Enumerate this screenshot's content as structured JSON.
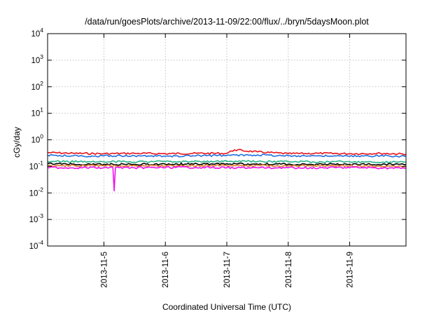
{
  "chart_data": {
    "type": "line",
    "title": "/data/run/goesPlots/archive/2013-11-09/22:00/flux/../bryn/5daysMoon.plot",
    "xlabel": "Coordinated Universal Time (UTC)",
    "ylabel": "cGy/day",
    "yscale": "log",
    "ylim": [
      0.0001,
      10000
    ],
    "y_ticks": [
      {
        "value": 0.0001,
        "base": "10",
        "exp": "-4"
      },
      {
        "value": 0.001,
        "base": "10",
        "exp": "-3"
      },
      {
        "value": 0.01,
        "base": "10",
        "exp": "-2"
      },
      {
        "value": 0.1,
        "base": "10",
        "exp": "-1"
      },
      {
        "value": 1,
        "base": "10",
        "exp": "0"
      },
      {
        "value": 10,
        "base": "10",
        "exp": "1"
      },
      {
        "value": 100,
        "base": "10",
        "exp": "2"
      },
      {
        "value": 1000,
        "base": "10",
        "exp": "3"
      },
      {
        "value": 10000,
        "base": "10",
        "exp": "4"
      }
    ],
    "xlim": [
      "2013-11-04T02:00",
      "2013-11-09T22:00"
    ],
    "x_ticks": [
      "2013-11-5",
      "2013-11-6",
      "2013-11-7",
      "2013-11-8",
      "2013-11-9"
    ],
    "grid": true,
    "legend": "none",
    "series": [
      {
        "color": "#e8141b",
        "x": [
          "2013-11-04T02:00",
          "2013-11-04T12:00",
          "2013-11-05T00:00",
          "2013-11-05T12:00",
          "2013-11-06T00:00",
          "2013-11-06T12:00",
          "2013-11-07T00:00",
          "2013-11-07T03:00",
          "2013-11-07T12:00",
          "2013-11-08T00:00",
          "2013-11-08T12:00",
          "2013-11-09T00:00",
          "2013-11-09T12:00",
          "2013-11-09T22:00"
        ],
        "y": [
          0.33,
          0.31,
          0.3,
          0.31,
          0.3,
          0.31,
          0.31,
          0.42,
          0.35,
          0.3,
          0.31,
          0.3,
          0.31,
          0.29
        ]
      },
      {
        "color": "#1f6fe0",
        "x": [
          "2013-11-04T02:00",
          "2013-11-04T12:00",
          "2013-11-04T20:00",
          "2013-11-05T00:00",
          "2013-11-05T12:00",
          "2013-11-06T00:00",
          "2013-11-06T12:00",
          "2013-11-07T00:00",
          "2013-11-07T12:00",
          "2013-11-08T00:00",
          "2013-11-08T12:00",
          "2013-11-09T00:00",
          "2013-11-09T12:00",
          "2013-11-09T22:00"
        ],
        "y": [
          0.26,
          0.25,
          0.24,
          0.25,
          0.25,
          0.24,
          0.25,
          0.26,
          0.27,
          0.25,
          0.25,
          0.24,
          0.25,
          0.24
        ]
      },
      {
        "color": "#2ab58a",
        "x": [
          "2013-11-04T02:00",
          "2013-11-05T00:00",
          "2013-11-06T00:00",
          "2013-11-07T00:00",
          "2013-11-08T00:00",
          "2013-11-09T00:00",
          "2013-11-09T22:00"
        ],
        "y": [
          0.155,
          0.15,
          0.15,
          0.155,
          0.15,
          0.15,
          0.145
        ]
      },
      {
        "color": "#000000",
        "x": [
          "2013-11-04T02:00",
          "2013-11-05T00:00",
          "2013-11-06T00:00",
          "2013-11-07T00:00",
          "2013-11-08T00:00",
          "2013-11-09T00:00",
          "2013-11-09T22:00"
        ],
        "y": [
          0.125,
          0.12,
          0.12,
          0.125,
          0.12,
          0.12,
          0.118
        ]
      },
      {
        "color": "#e07a2a",
        "x": [
          "2013-11-04T02:00",
          "2013-11-05T00:00",
          "2013-11-06T00:00",
          "2013-11-07T00:00",
          "2013-11-08T00:00",
          "2013-11-09T00:00",
          "2013-11-09T22:00"
        ],
        "y": [
          0.108,
          0.105,
          0.105,
          0.108,
          0.105,
          0.104,
          0.102
        ]
      },
      {
        "color": "#ee10ee",
        "x": [
          "2013-11-04T02:00",
          "2013-11-04T12:00",
          "2013-11-05T00:00",
          "2013-11-05T03:30",
          "2013-11-05T04:00",
          "2013-11-05T04:30",
          "2013-11-05T12:00",
          "2013-11-06T00:00",
          "2013-11-06T12:00",
          "2013-11-07T00:00",
          "2013-11-07T12:00",
          "2013-11-08T00:00",
          "2013-11-08T12:00",
          "2013-11-09T00:00",
          "2013-11-09T12:00",
          "2013-11-09T22:00"
        ],
        "y": [
          0.09,
          0.088,
          0.09,
          0.09,
          0.012,
          0.09,
          0.088,
          0.09,
          0.092,
          0.09,
          0.088,
          0.09,
          0.088,
          0.09,
          0.087,
          0.085
        ]
      }
    ]
  }
}
